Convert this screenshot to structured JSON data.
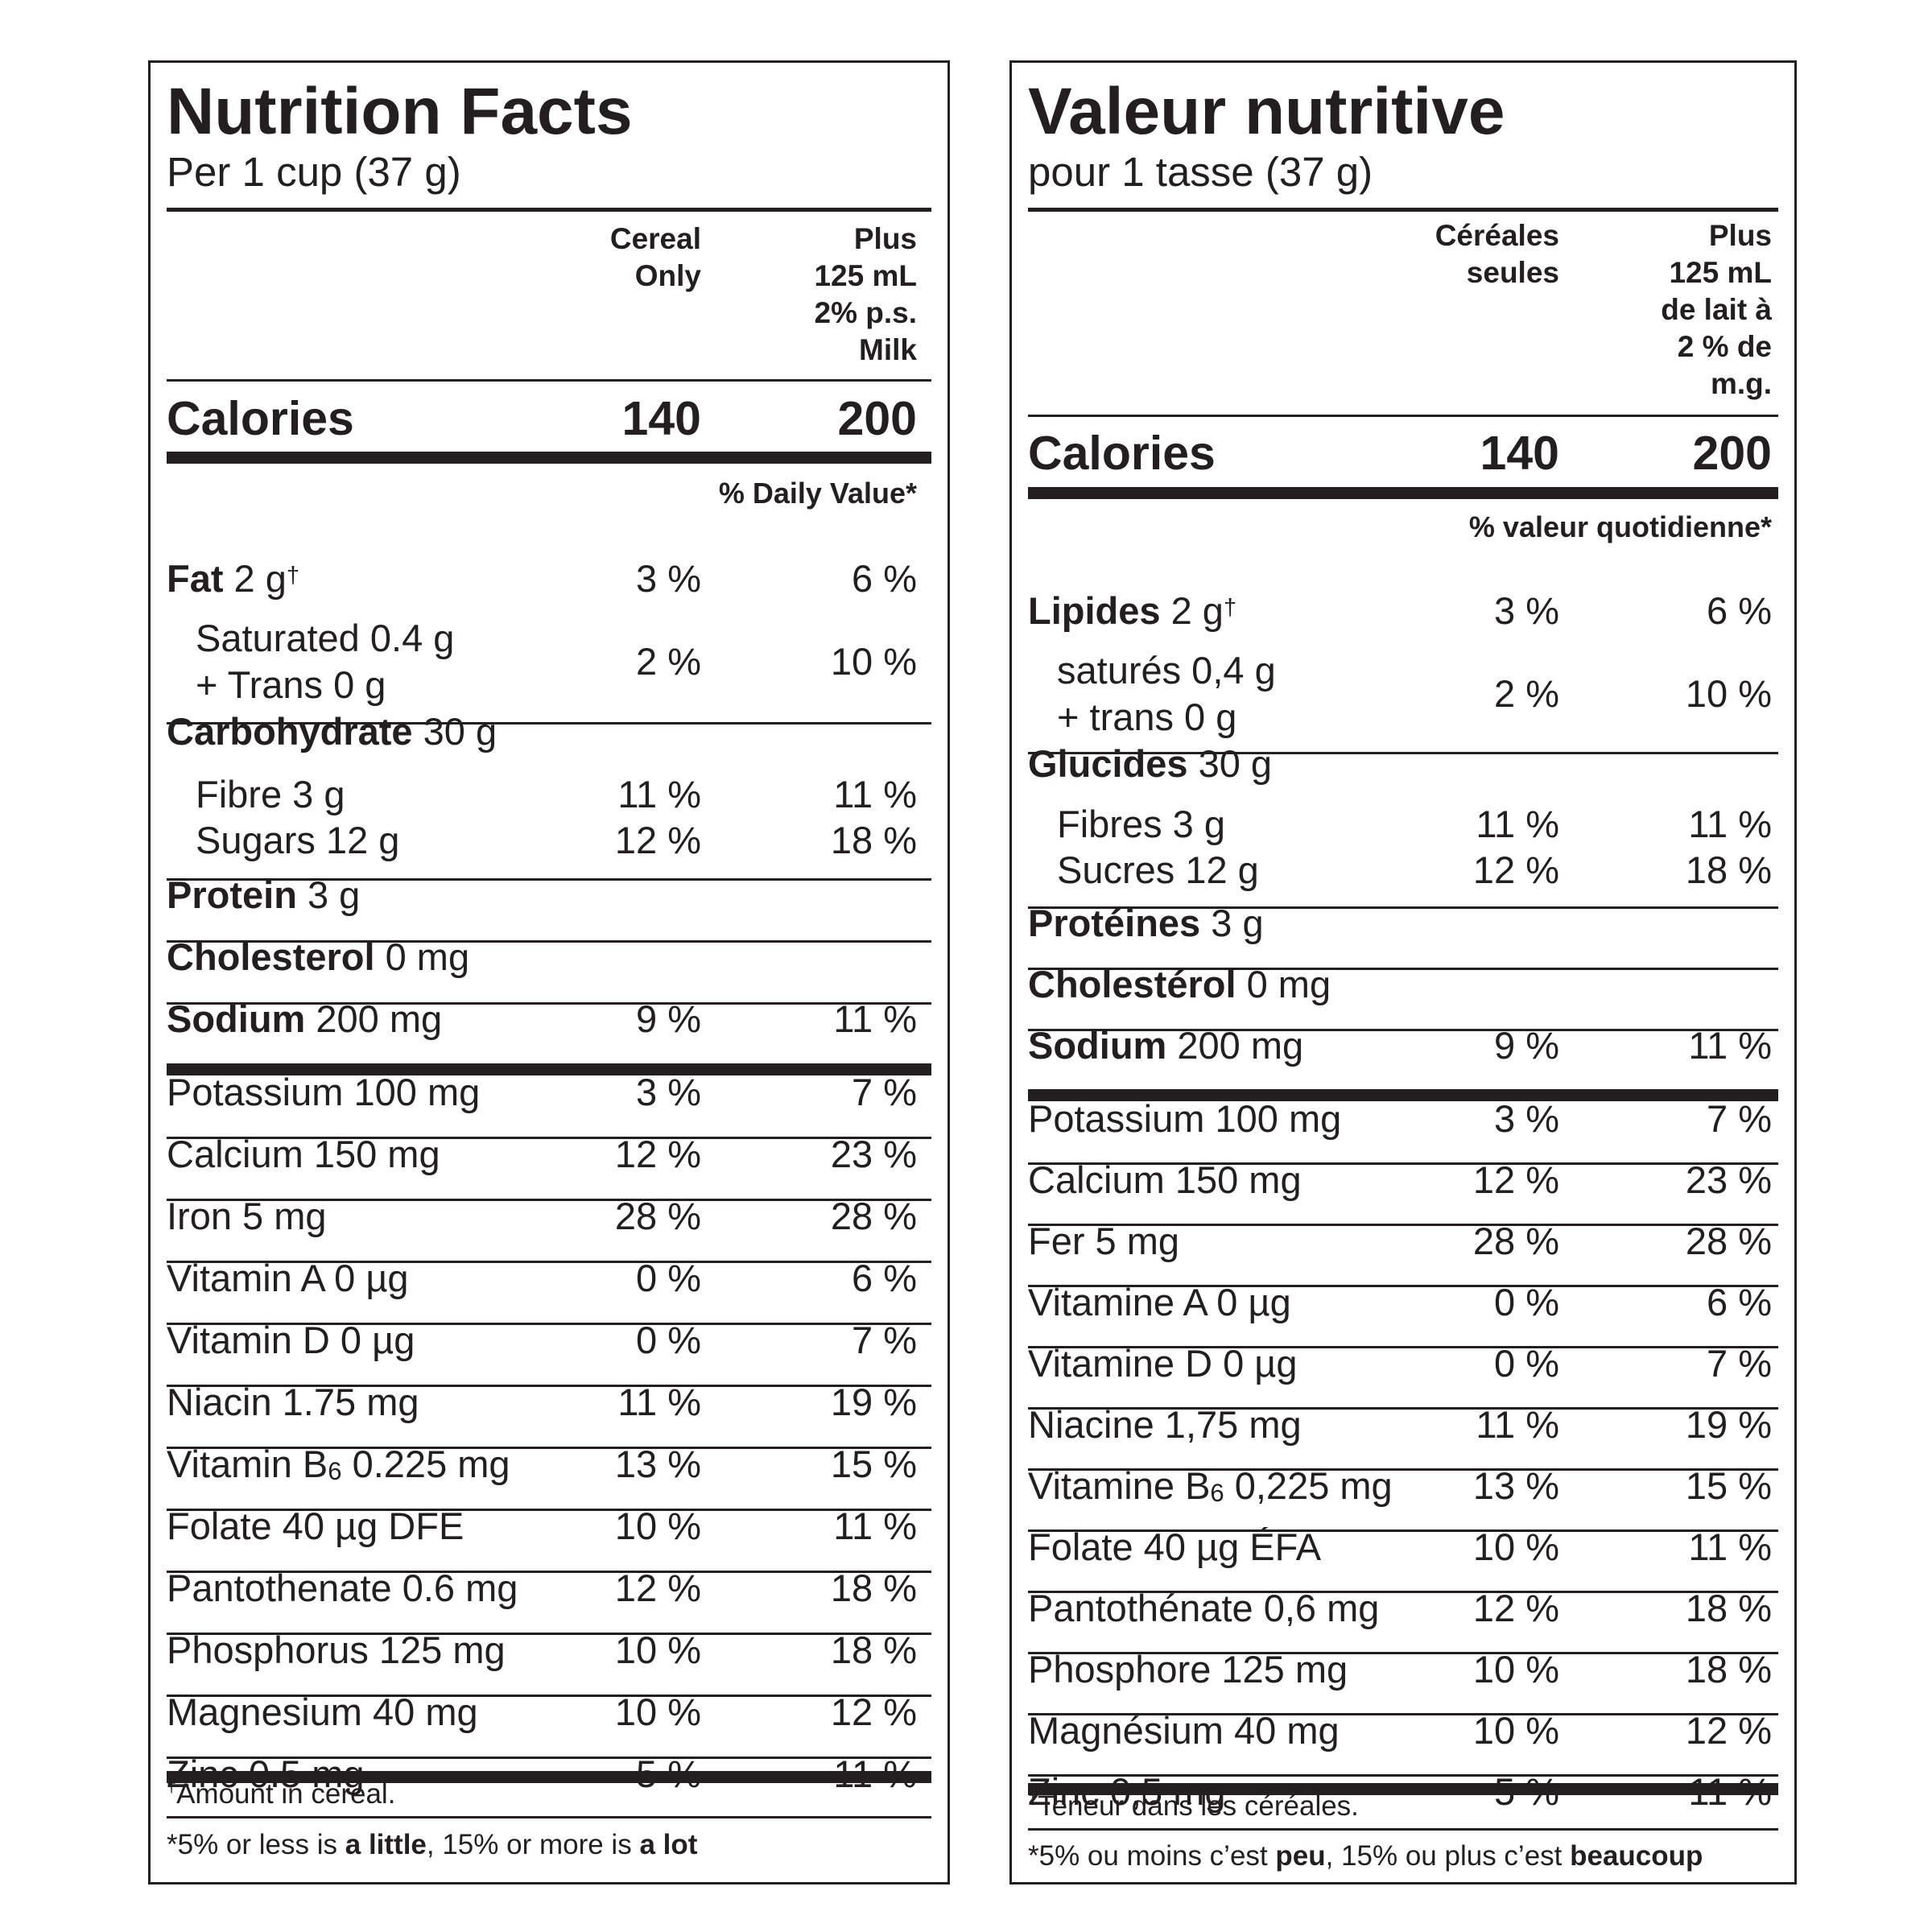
{
  "labels": [
    {
      "title": "Nutrition Facts",
      "serving": "Per 1 cup (37 g)",
      "col1_header": "Cereal\nOnly",
      "col2_header": "Plus\n125 mL\n2% p.s.\nMilk",
      "calories": {
        "label": "Calories",
        "v1": "140",
        "v2": "200"
      },
      "dv_header": "% Daily Value*",
      "rows": [
        {
          "bold": "Fat",
          "text": " 2 g",
          "dagger": true,
          "v1": "3 %",
          "v2": "6 %"
        },
        {
          "line1": "Saturated 0.4 g",
          "line2": "+ Trans 0 g",
          "v1": "2 %",
          "v2": "10 %"
        },
        {
          "bold": "Carbohydrate",
          "text": " 30 g"
        },
        {
          "text": "Fibre 3 g",
          "indent": true,
          "v1": "11 %",
          "v2": "11 %"
        },
        {
          "text": "Sugars 12 g",
          "indent": true,
          "v1": "12 %",
          "v2": "18 %"
        },
        {
          "bold": "Protein",
          "text": " 3 g"
        },
        {
          "bold": "Cholesterol",
          "text": " 0 mg"
        },
        {
          "bold": "Sodium",
          "text": " 200 mg",
          "v1": "9 %",
          "v2": "11 %"
        },
        {
          "text": "Potassium 100 mg",
          "v1": "3 %",
          "v2": "7 %"
        },
        {
          "text": "Calcium 150 mg",
          "v1": "12 %",
          "v2": "23 %"
        },
        {
          "text": "Iron 5 mg",
          "v1": "28 %",
          "v2": "28 %"
        },
        {
          "text": "Vitamin A 0 µg",
          "v1": "0 %",
          "v2": "6 %"
        },
        {
          "text": "Vitamin D 0 µg",
          "v1": "0 %",
          "v2": "7 %"
        },
        {
          "text": "Niacin 1.75 mg",
          "v1": "11 %",
          "v2": "19 %"
        },
        {
          "pre": "Vitamin B",
          "sub": "6",
          "post": " 0.225 mg",
          "v1": "13 %",
          "v2": "15 %"
        },
        {
          "text": "Folate 40 µg DFE",
          "v1": "10 %",
          "v2": "11 %"
        },
        {
          "text": "Pantothenate 0.6 mg",
          "v1": "12 %",
          "v2": "18 %"
        },
        {
          "text": "Phosphorus 125 mg",
          "v1": "10 %",
          "v2": "18 %"
        },
        {
          "text": "Magnesium 40 mg",
          "v1": "10 %",
          "v2": "12 %"
        },
        {
          "text": "Zinc 0.5 mg",
          "v1": "5 %",
          "v2": "11 %"
        }
      ],
      "footnote_dagger": "Amount in cereal.",
      "footnote_star": {
        "a": "*5% or less is ",
        "b": "a little",
        "c": ", 15% or more is ",
        "d": "a lot"
      }
    },
    {
      "title": "Valeur nutritive",
      "serving": "pour 1 tasse (37 g)",
      "col1_header": "Céréales\nseules",
      "col2_header": "Plus\n125 mL\nde lait à\n2 % de\nm.g.",
      "calories": {
        "label": "Calories",
        "v1": "140",
        "v2": "200"
      },
      "dv_header": "% valeur quotidienne*",
      "rows": [
        {
          "bold": "Lipides",
          "text": " 2 g",
          "dagger": true,
          "v1": "3 %",
          "v2": "6 %"
        },
        {
          "line1": "saturés 0,4 g",
          "line2": "+ trans 0 g",
          "v1": "2 %",
          "v2": "10 %"
        },
        {
          "bold": "Glucides",
          "text": " 30 g"
        },
        {
          "text": "Fibres 3 g",
          "indent": true,
          "v1": "11 %",
          "v2": "11 %"
        },
        {
          "text": "Sucres 12 g",
          "indent": true,
          "v1": "12 %",
          "v2": "18 %"
        },
        {
          "bold": "Protéines",
          "text": " 3 g"
        },
        {
          "bold": "Cholestérol",
          "text": " 0 mg"
        },
        {
          "bold": "Sodium",
          "text": " 200 mg",
          "v1": "9 %",
          "v2": "11 %"
        },
        {
          "text": "Potassium 100 mg",
          "v1": "3 %",
          "v2": "7 %"
        },
        {
          "text": "Calcium 150 mg",
          "v1": "12 %",
          "v2": "23 %"
        },
        {
          "text": "Fer 5 mg",
          "v1": "28 %",
          "v2": "28 %"
        },
        {
          "text": "Vitamine A 0 µg",
          "v1": "0 %",
          "v2": "6 %"
        },
        {
          "text": "Vitamine D 0 µg",
          "v1": "0 %",
          "v2": "7 %"
        },
        {
          "text": "Niacine 1,75 mg",
          "v1": "11 %",
          "v2": "19 %"
        },
        {
          "pre": "Vitamine B",
          "sub": "6",
          "post": " 0,225 mg",
          "v1": "13 %",
          "v2": "15 %"
        },
        {
          "text": "Folate 40 µg ÉFA",
          "v1": "10 %",
          "v2": "11 %"
        },
        {
          "text": "Pantothénate 0,6 mg",
          "v1": "12 %",
          "v2": "18 %"
        },
        {
          "text": "Phosphore 125 mg",
          "v1": "10 %",
          "v2": "18 %"
        },
        {
          "text": "Magnésium 40 mg",
          "v1": "10 %",
          "v2": "12 %"
        },
        {
          "text": "Zinc 0,5 mg",
          "v1": "5 %",
          "v2": "11 %"
        }
      ],
      "footnote_dagger": "Teneur dans les céréales.",
      "footnote_star": {
        "a": "*5% ou moins c’est ",
        "b": "peu",
        "c": ", 15% ou plus c’est ",
        "d": "beaucoup"
      }
    }
  ],
  "dagger": "†"
}
